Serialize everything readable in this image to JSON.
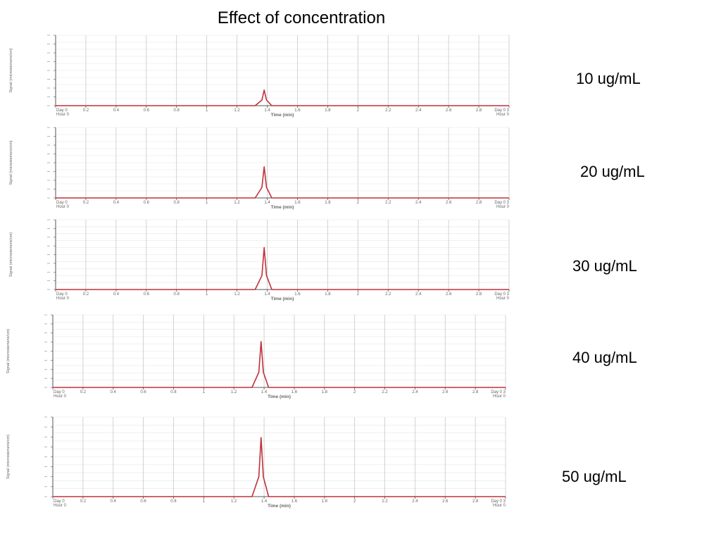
{
  "title": "Effect of concentration",
  "panels": [
    {
      "concentration_label": "10 ug/mL"
    },
    {
      "concentration_label": "20 ug/mL"
    },
    {
      "concentration_label": "30 ug/mL"
    },
    {
      "concentration_label": "40 ug/mL"
    },
    {
      "concentration_label": "50 ug/mL"
    }
  ],
  "colors": {
    "trace": "#c0303c",
    "grid": "#c8c8c8",
    "axis": "#555555"
  },
  "chart_data": [
    {
      "type": "line",
      "xlabel": "Time (min)",
      "ylabel": "Signal (microsiemens/cm)",
      "xlim": [
        0,
        3
      ],
      "ylim": [
        0,
        1
      ],
      "x_ticks": [
        "0",
        "0.2",
        "0.4",
        "0.6",
        "0.8",
        "1",
        "1.2",
        "1.4",
        "1.6",
        "1.8",
        "2",
        "2.2",
        "2.4",
        "2.6",
        "2.8",
        "3"
      ],
      "start_label": [
        "Day 0",
        "Hour 0"
      ],
      "end_label": [
        "Day 0",
        "Hour 0"
      ],
      "peak": {
        "x": 1.38,
        "y": 0.22
      },
      "series": [
        {
          "values": [
            [
              0,
              0
            ],
            [
              1.32,
              0
            ],
            [
              1.365,
              0.08
            ],
            [
              1.38,
              0.22
            ],
            [
              1.395,
              0.08
            ],
            [
              1.43,
              0
            ],
            [
              3,
              0
            ]
          ]
        }
      ]
    },
    {
      "type": "line",
      "xlabel": "Time (min)",
      "ylabel": "Signal (microsiemens/cm)",
      "xlim": [
        0,
        3
      ],
      "ylim": [
        0,
        1
      ],
      "x_ticks": [
        "0",
        "0.2",
        "0.4",
        "0.6",
        "0.8",
        "1",
        "1.2",
        "1.4",
        "1.6",
        "1.8",
        "2",
        "2.2",
        "2.4",
        "2.6",
        "2.8",
        "3"
      ],
      "start_label": [
        "Day 0",
        "Hour 0"
      ],
      "end_label": [
        "Day 0",
        "Hour 0"
      ],
      "peak": {
        "x": 1.38,
        "y": 0.44
      },
      "series": [
        {
          "values": [
            [
              0,
              0
            ],
            [
              1.32,
              0
            ],
            [
              1.365,
              0.15
            ],
            [
              1.38,
              0.44
            ],
            [
              1.395,
              0.15
            ],
            [
              1.43,
              0
            ],
            [
              3,
              0
            ]
          ]
        }
      ]
    },
    {
      "type": "line",
      "xlabel": "Time (min)",
      "ylabel": "Signal (microsiemens/cm)",
      "xlim": [
        0,
        3
      ],
      "ylim": [
        0,
        1
      ],
      "x_ticks": [
        "0",
        "0.2",
        "0.4",
        "0.6",
        "0.8",
        "1",
        "1.2",
        "1.4",
        "1.6",
        "1.8",
        "2",
        "2.2",
        "2.4",
        "2.6",
        "2.8",
        "3"
      ],
      "start_label": [
        "Day 0",
        "Hour 0"
      ],
      "end_label": [
        "Day 0",
        "Hour 0"
      ],
      "peak": {
        "x": 1.38,
        "y": 0.6
      },
      "series": [
        {
          "values": [
            [
              0,
              0
            ],
            [
              1.32,
              0
            ],
            [
              1.365,
              0.2
            ],
            [
              1.38,
              0.6
            ],
            [
              1.395,
              0.2
            ],
            [
              1.43,
              0
            ],
            [
              3,
              0
            ]
          ]
        }
      ]
    },
    {
      "type": "line",
      "xlabel": "Time (min)",
      "ylabel": "Signal (microsiemens/cm)",
      "xlim": [
        0,
        3
      ],
      "ylim": [
        0,
        1
      ],
      "x_ticks": [
        "0",
        "0.2",
        "0.4",
        "0.6",
        "0.8",
        "1",
        "1.2",
        "1.4",
        "1.6",
        "1.8",
        "2",
        "2.2",
        "2.4",
        "2.6",
        "2.8",
        "3"
      ],
      "start_label": [
        "Day 0",
        "Hour 0"
      ],
      "end_label": [
        "Day 0",
        "Hour 0"
      ],
      "peak": {
        "x": 1.38,
        "y": 0.63
      },
      "series": [
        {
          "values": [
            [
              0,
              0
            ],
            [
              1.32,
              0
            ],
            [
              1.365,
              0.21
            ],
            [
              1.38,
              0.63
            ],
            [
              1.395,
              0.21
            ],
            [
              1.43,
              0
            ],
            [
              3,
              0
            ]
          ]
        }
      ]
    },
    {
      "type": "line",
      "xlabel": "Time (min)",
      "ylabel": "Signal (microsiemens/cm)",
      "xlim": [
        0,
        3
      ],
      "ylim": [
        0,
        1
      ],
      "x_ticks": [
        "0",
        "0.2",
        "0.4",
        "0.6",
        "0.8",
        "1",
        "1.2",
        "1.4",
        "1.6",
        "1.8",
        "2",
        "2.2",
        "2.4",
        "2.6",
        "2.8",
        "3"
      ],
      "start_label": [
        "Day 0",
        "Hour 0"
      ],
      "end_label": [
        "Day 0",
        "Hour 0"
      ],
      "peak": {
        "x": 1.38,
        "y": 0.74
      },
      "series": [
        {
          "values": [
            [
              0,
              0
            ],
            [
              1.32,
              0
            ],
            [
              1.365,
              0.25
            ],
            [
              1.38,
              0.74
            ],
            [
              1.395,
              0.25
            ],
            [
              1.43,
              0
            ],
            [
              3,
              0
            ]
          ]
        }
      ]
    }
  ]
}
